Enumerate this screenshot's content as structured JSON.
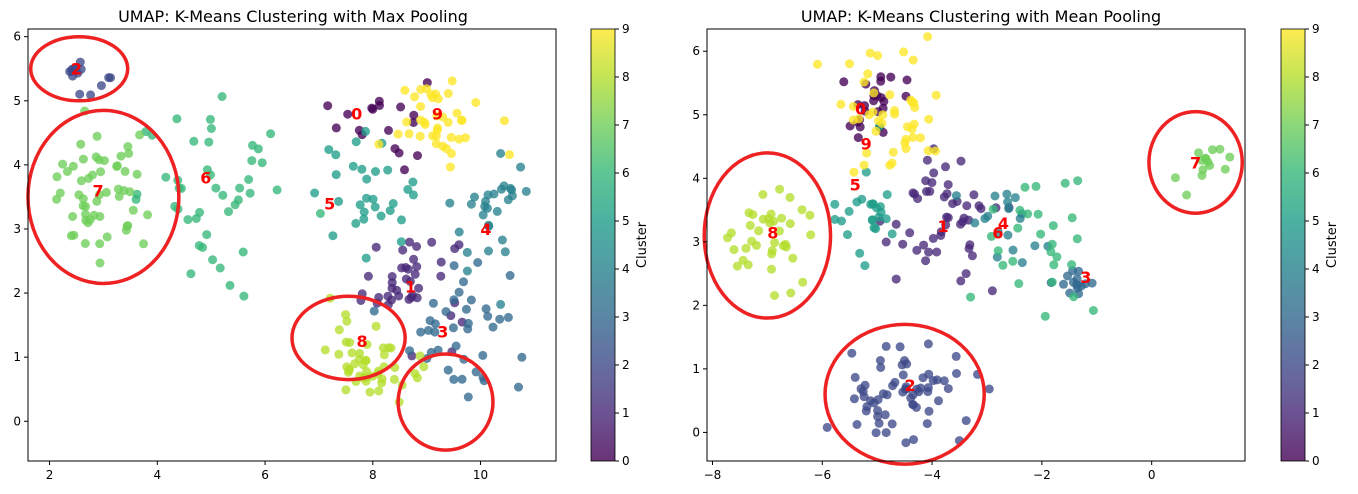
{
  "chart_data": [
    {
      "type": "scatter",
      "title": "UMAP: K-Means Clustering with Max Pooling",
      "xlim": [
        1.6,
        11.4
      ],
      "ylim": [
        -0.62,
        6.12
      ],
      "xticks": [
        2,
        4,
        6,
        8,
        10
      ],
      "yticks": [
        0,
        1,
        2,
        3,
        4,
        5,
        6
      ],
      "colorbar": {
        "label": "Cluster",
        "ticks": [
          0,
          1,
          2,
          3,
          4,
          5,
          6,
          7,
          8,
          9
        ]
      },
      "clusters": [
        {
          "id": 0,
          "label": "0",
          "label_pos": [
            7.7,
            4.8
          ],
          "center": [
            8.2,
            4.7
          ],
          "spread": [
            0.55,
            0.5
          ],
          "n": 18
        },
        {
          "id": 1,
          "label": "1",
          "label_pos": [
            8.7,
            2.1
          ],
          "center": [
            8.7,
            2.2
          ],
          "spread": [
            0.7,
            0.55
          ],
          "n": 40
        },
        {
          "id": 2,
          "label": "2",
          "label_pos": [
            2.5,
            5.5
          ],
          "center": [
            2.5,
            5.45
          ],
          "spread": [
            0.5,
            0.22
          ],
          "n": 14
        },
        {
          "id": 3,
          "label": "3",
          "label_pos": [
            9.3,
            1.4
          ],
          "center": [
            9.6,
            1.5
          ],
          "spread": [
            0.6,
            0.8
          ],
          "n": 40
        },
        {
          "id": 4,
          "label": "4",
          "label_pos": [
            10.1,
            3.0
          ],
          "center": [
            10.2,
            3.2
          ],
          "spread": [
            0.5,
            0.6
          ],
          "n": 28
        },
        {
          "id": 5,
          "label": "5",
          "label_pos": [
            7.2,
            3.4
          ],
          "center": [
            7.8,
            3.6
          ],
          "spread": [
            0.7,
            0.55
          ],
          "n": 30
        },
        {
          "id": 6,
          "label": "6",
          "label_pos": [
            4.9,
            3.8
          ],
          "center": [
            5.3,
            3.5
          ],
          "spread": [
            1.1,
            0.9
          ],
          "n": 45
        },
        {
          "id": 7,
          "label": "7",
          "label_pos": [
            2.9,
            3.6
          ],
          "center": [
            2.9,
            3.5
          ],
          "spread": [
            0.6,
            0.6
          ],
          "n": 55
        },
        {
          "id": 8,
          "label": "8",
          "label_pos": [
            7.8,
            1.25
          ],
          "center": [
            8.0,
            1.0
          ],
          "spread": [
            0.55,
            0.45
          ],
          "n": 48
        },
        {
          "id": 9,
          "label": "9",
          "label_pos": [
            9.2,
            4.8
          ],
          "center": [
            9.3,
            4.7
          ],
          "spread": [
            0.55,
            0.4
          ],
          "n": 40
        }
      ],
      "circles": [
        {
          "cx": 2.55,
          "cy": 5.5,
          "rx": 0.9,
          "ry": 0.5
        },
        {
          "cx": 3.0,
          "cy": 3.5,
          "rx": 1.4,
          "ry": 1.35
        },
        {
          "cx": 7.55,
          "cy": 1.3,
          "rx": 1.05,
          "ry": 0.65
        },
        {
          "cx": 9.35,
          "cy": 0.3,
          "rx": 0.88,
          "ry": 0.75
        }
      ]
    },
    {
      "type": "scatter",
      "title": "UMAP: K-Means Clustering with Mean Pooling",
      "xlim": [
        -8.1,
        1.7
      ],
      "ylim": [
        -0.45,
        6.35
      ],
      "xticks": [
        -8,
        -6,
        -4,
        -2,
        0
      ],
      "yticks": [
        0,
        1,
        2,
        3,
        4,
        5,
        6
      ],
      "colorbar": {
        "label": "Cluster",
        "ticks": [
          0,
          1,
          2,
          3,
          4,
          5,
          6,
          7,
          8,
          9
        ]
      },
      "clusters": [
        {
          "id": 0,
          "label": "0",
          "label_pos": [
            -5.3,
            5.1
          ],
          "center": [
            -5.2,
            5.2
          ],
          "spread": [
            0.45,
            0.4
          ],
          "n": 25
        },
        {
          "id": 1,
          "label": "1",
          "label_pos": [
            -3.8,
            3.25
          ],
          "center": [
            -3.9,
            3.4
          ],
          "spread": [
            0.7,
            0.65
          ],
          "n": 50
        },
        {
          "id": 2,
          "label": "2",
          "label_pos": [
            -4.4,
            0.75
          ],
          "center": [
            -4.5,
            0.6
          ],
          "spread": [
            0.8,
            0.55
          ],
          "n": 65
        },
        {
          "id": 3,
          "label": "3",
          "label_pos": [
            -1.2,
            2.45
          ],
          "center": [
            -1.3,
            2.35
          ],
          "spread": [
            0.3,
            0.25
          ],
          "n": 14
        },
        {
          "id": 4,
          "label": "4",
          "label_pos": [
            -2.7,
            3.3
          ],
          "center": [
            -2.6,
            3.4
          ],
          "spread": [
            0.45,
            0.5
          ],
          "n": 18
        },
        {
          "id": 5,
          "label": "5",
          "label_pos": [
            -5.4,
            3.9
          ],
          "center": [
            -5.3,
            3.6
          ],
          "spread": [
            0.45,
            0.55
          ],
          "n": 25
        },
        {
          "id": 6,
          "label": "6",
          "label_pos": [
            -2.8,
            3.15
          ],
          "center": [
            -2.0,
            3.0
          ],
          "spread": [
            0.7,
            1.0
          ],
          "n": 28
        },
        {
          "id": 7,
          "label": "7",
          "label_pos": [
            0.8,
            4.25
          ],
          "center": [
            1.0,
            4.2
          ],
          "spread": [
            0.3,
            0.25
          ],
          "n": 14
        },
        {
          "id": 8,
          "label": "8",
          "label_pos": [
            -6.9,
            3.15
          ],
          "center": [
            -7.0,
            3.1
          ],
          "spread": [
            0.55,
            0.5
          ],
          "n": 38
        },
        {
          "id": 9,
          "label": "9",
          "label_pos": [
            -5.2,
            4.55
          ],
          "center": [
            -4.8,
            5.0
          ],
          "spread": [
            0.75,
            0.6
          ],
          "n": 45
        }
      ],
      "circles": [
        {
          "cx": -7.0,
          "cy": 3.1,
          "rx": 1.15,
          "ry": 1.3
        },
        {
          "cx": 0.8,
          "cy": 4.25,
          "rx": 0.85,
          "ry": 0.8
        },
        {
          "cx": -4.5,
          "cy": 0.6,
          "rx": 1.45,
          "ry": 1.1
        }
      ]
    }
  ]
}
